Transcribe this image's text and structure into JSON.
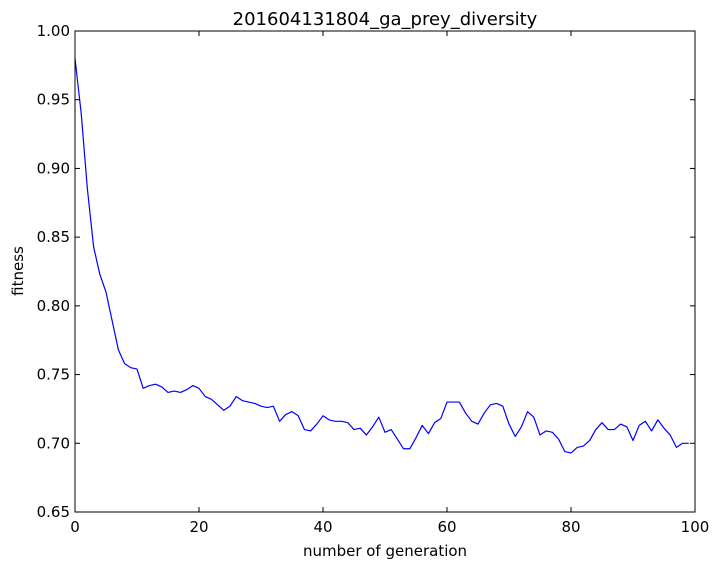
{
  "chart_data": {
    "type": "line",
    "title": "201604131804_ga_prey_diversity",
    "xlabel": "number of generation",
    "ylabel": "fitness",
    "xlim": [
      0,
      100
    ],
    "ylim": [
      0.65,
      1.0
    ],
    "grid": false,
    "legend": "none",
    "line_color": "#0000ff",
    "x_ticks": [
      "0",
      "20",
      "40",
      "60",
      "80",
      "100"
    ],
    "y_ticks": [
      "0.65",
      "0.70",
      "0.75",
      "0.80",
      "0.85",
      "0.90",
      "0.95",
      "1.00"
    ],
    "series": [
      {
        "x": [
          0,
          1,
          2,
          3,
          4,
          5,
          6,
          7,
          8,
          9,
          10,
          11,
          12,
          13,
          14,
          15,
          16,
          17,
          18,
          19,
          20,
          21,
          22,
          23,
          24,
          25,
          26,
          27,
          28,
          29,
          30,
          31,
          32,
          33,
          34,
          35,
          36,
          37,
          38,
          39,
          40,
          41,
          42,
          43,
          44,
          45,
          46,
          47,
          48,
          49,
          50,
          51,
          52,
          53,
          54,
          55,
          56,
          57,
          58,
          59,
          60,
          61,
          62,
          63,
          64,
          65,
          66,
          67,
          68,
          69,
          70,
          71,
          72,
          73,
          74,
          75,
          76,
          77,
          78,
          79,
          80,
          81,
          82,
          83,
          84,
          85,
          86,
          87,
          88,
          89,
          90,
          91,
          92,
          93,
          94,
          95,
          96,
          97,
          98,
          99
        ],
        "values": [
          0.98,
          0.94,
          0.885,
          0.843,
          0.823,
          0.81,
          0.789,
          0.768,
          0.758,
          0.755,
          0.754,
          0.74,
          0.742,
          0.743,
          0.741,
          0.737,
          0.738,
          0.737,
          0.739,
          0.742,
          0.74,
          0.734,
          0.732,
          0.728,
          0.724,
          0.727,
          0.734,
          0.731,
          0.73,
          0.729,
          0.727,
          0.726,
          0.727,
          0.716,
          0.721,
          0.723,
          0.72,
          0.71,
          0.709,
          0.714,
          0.72,
          0.717,
          0.716,
          0.716,
          0.715,
          0.71,
          0.711,
          0.706,
          0.712,
          0.719,
          0.708,
          0.71,
          0.703,
          0.696,
          0.696,
          0.704,
          0.713,
          0.707,
          0.715,
          0.718,
          0.73,
          0.73,
          0.73,
          0.722,
          0.716,
          0.714,
          0.722,
          0.728,
          0.729,
          0.727,
          0.714,
          0.705,
          0.712,
          0.723,
          0.719,
          0.706,
          0.709,
          0.708,
          0.703,
          0.694,
          0.693,
          0.697,
          0.698,
          0.702,
          0.71,
          0.715,
          0.71,
          0.71,
          0.714,
          0.712,
          0.702,
          0.713,
          0.716,
          0.709,
          0.717,
          0.711,
          0.706,
          0.697,
          0.7,
          0.7
        ]
      }
    ]
  }
}
